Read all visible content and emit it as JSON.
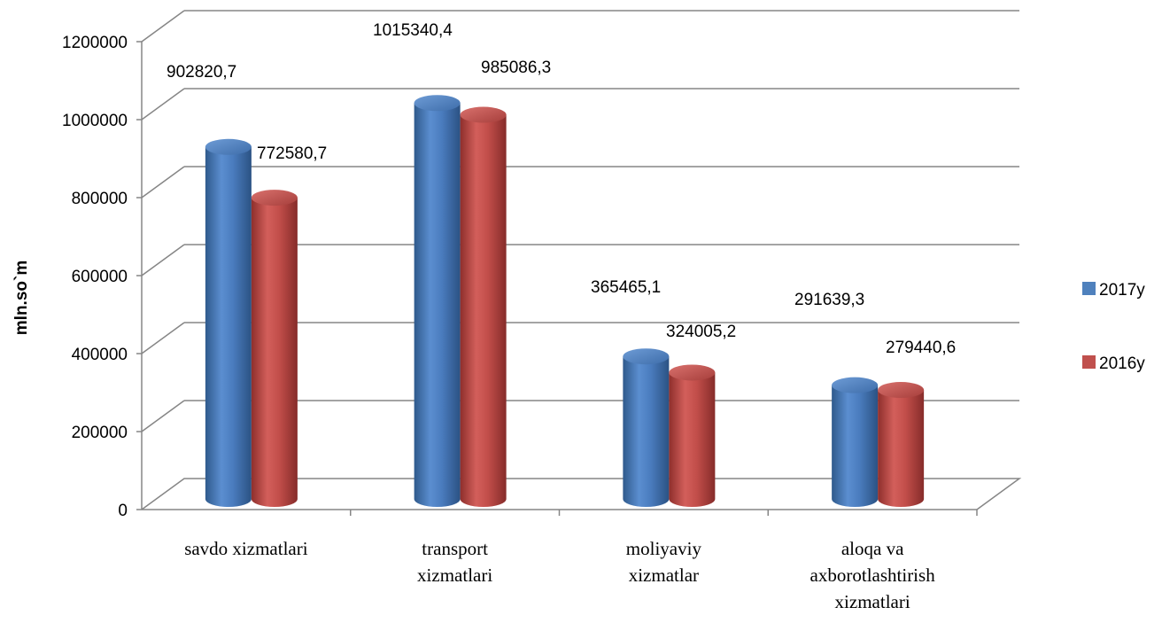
{
  "chart_data": {
    "type": "bar",
    "style": "3d-cylinder",
    "title": "",
    "xlabel": "",
    "ylabel": "mln.so`m",
    "ylim": [
      0,
      1200000
    ],
    "ytick_step": 200000,
    "yticks": [
      "0",
      "200000",
      "400000",
      "600000",
      "800000",
      "1000000",
      "1200000"
    ],
    "grid": true,
    "legend_position": "right",
    "categories": [
      [
        "savdo xizmatlari"
      ],
      [
        "transport",
        "xizmatlari"
      ],
      [
        "moliyaviy",
        "xizmatlar"
      ],
      [
        "aloqa va",
        "axborotlashtirish",
        "xizmatlari"
      ]
    ],
    "series": [
      {
        "name": "2017y",
        "color": "#4F81BD",
        "values": [
          902820.7,
          1015340.4,
          365465.1,
          291639.3
        ],
        "labels": [
          "902820,7",
          "1015340,4",
          "365465,1",
          "291639,3"
        ]
      },
      {
        "name": "2016y",
        "color": "#C0504D",
        "values": [
          772580.7,
          985086.3,
          324005.2,
          279440.6
        ],
        "labels": [
          "772580,7",
          "985086,3",
          "324005,2",
          "279440,6"
        ]
      }
    ]
  }
}
